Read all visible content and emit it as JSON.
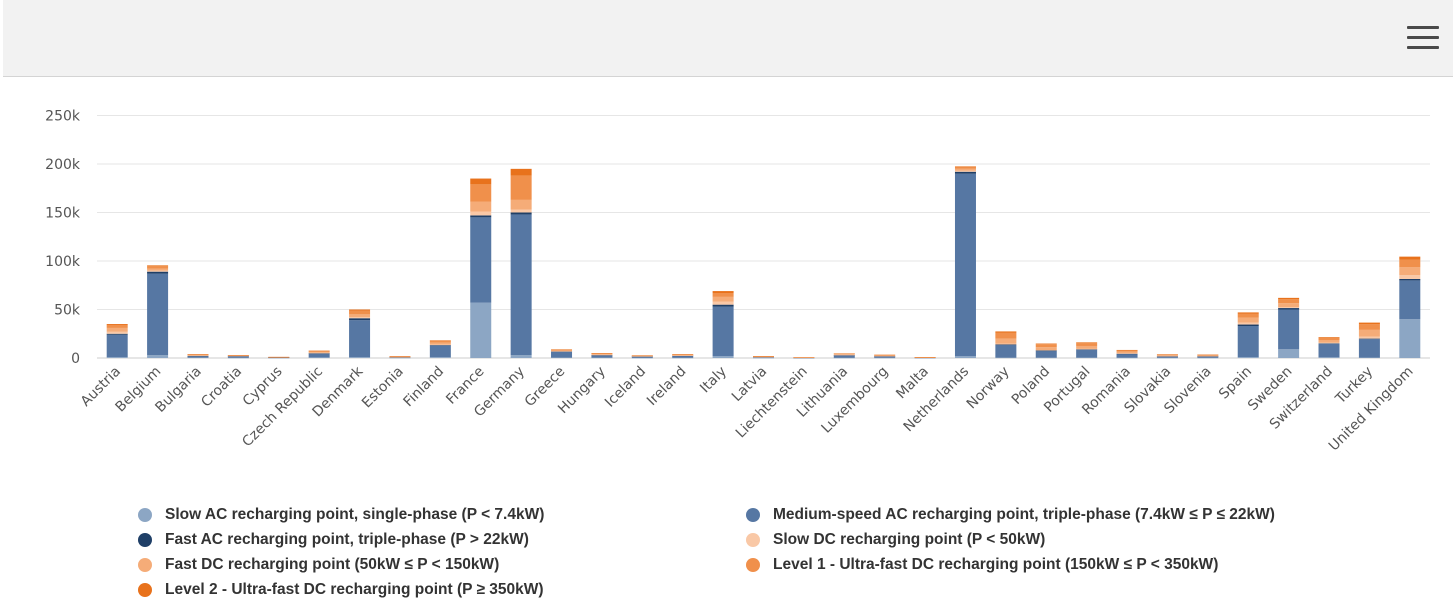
{
  "menu": {
    "icon": "hamburger-menu-icon"
  },
  "chart_data": {
    "type": "bar",
    "stacked": true,
    "categories": [
      "Austria",
      "Belgium",
      "Bulgaria",
      "Croatia",
      "Cyprus",
      "Czech Republic",
      "Denmark",
      "Estonia",
      "Finland",
      "France",
      "Germany",
      "Greece",
      "Hungary",
      "Iceland",
      "Ireland",
      "Italy",
      "Latvia",
      "Liechtenstein",
      "Lithuania",
      "Luxembourg",
      "Malta",
      "Netherlands",
      "Norway",
      "Poland",
      "Portugal",
      "Romania",
      "Slovakia",
      "Slovenia",
      "Spain",
      "Sweden",
      "Switzerland",
      "Turkey",
      "United Kingdom"
    ],
    "ylim": [
      0,
      250000
    ],
    "yticks": [
      0,
      50000,
      100000,
      150000,
      200000,
      250000
    ],
    "ytick_labels": [
      "0",
      "50k",
      "100k",
      "150k",
      "200k",
      "250k"
    ],
    "grid": true,
    "legend_position": "bottom",
    "series": [
      {
        "name": "Slow AC recharging point, single-phase (P < 7.4kW)",
        "color": "#8ca6c4",
        "values": [
          1000,
          3000,
          500,
          200,
          100,
          600,
          1000,
          200,
          800,
          57000,
          3000,
          500,
          400,
          100,
          200,
          2000,
          100,
          50,
          200,
          200,
          50,
          2000,
          400,
          400,
          500,
          300,
          200,
          200,
          1000,
          9000,
          700,
          500,
          40000
        ]
      },
      {
        "name": "Medium-speed AC recharging point, triple-phase (7.4kW ≤ P ≤ 22kW)",
        "color": "#5677a3",
        "values": [
          23000,
          84000,
          1500,
          1500,
          500,
          4000,
          38000,
          500,
          12000,
          88000,
          145000,
          6000,
          2500,
          1500,
          2000,
          51000,
          800,
          300,
          2500,
          1500,
          400,
          188000,
          13000,
          7000,
          8000,
          4000,
          1500,
          1500,
          32000,
          41000,
          14000,
          19000,
          40000
        ]
      },
      {
        "name": "Fast AC recharging point, triple-phase (P > 22kW)",
        "color": "#1f3f67",
        "values": [
          1000,
          2000,
          300,
          300,
          100,
          400,
          2000,
          100,
          500,
          2000,
          2000,
          300,
          200,
          100,
          300,
          2000,
          100,
          50,
          300,
          200,
          50,
          2000,
          500,
          300,
          400,
          200,
          100,
          100,
          1500,
          1500,
          500,
          500,
          1500
        ]
      },
      {
        "name": "Slow DC recharging point (P < 50kW)",
        "color": "#f9c8a6",
        "values": [
          2000,
          1000,
          200,
          200,
          100,
          300,
          1000,
          100,
          500,
          4000,
          3000,
          200,
          200,
          100,
          100,
          3000,
          100,
          50,
          200,
          200,
          50,
          1000,
          1000,
          500,
          500,
          300,
          200,
          200,
          2000,
          1000,
          500,
          2000,
          4000
        ]
      },
      {
        "name": "Fast DC recharging point (50kW ≤ P < 150kW)",
        "color": "#f5ac78",
        "values": [
          4000,
          2000,
          800,
          500,
          200,
          1000,
          3000,
          400,
          2000,
          10000,
          10000,
          800,
          800,
          400,
          500,
          5000,
          400,
          100,
          800,
          600,
          200,
          2000,
          5000,
          3000,
          3000,
          1800,
          900,
          700,
          5000,
          4000,
          2500,
          7000,
          8000
        ]
      },
      {
        "name": "Level 1 - Ultra-fast DC recharging point (150kW ≤ P < 350kW)",
        "color": "#f0904b",
        "values": [
          3000,
          2500,
          500,
          300,
          100,
          1000,
          4000,
          500,
          2000,
          18000,
          25000,
          800,
          600,
          400,
          600,
          4000,
          400,
          100,
          500,
          500,
          150,
          1500,
          6000,
          3000,
          3000,
          1200,
          700,
          600,
          4000,
          4000,
          2500,
          6000,
          8000
        ]
      },
      {
        "name": "Level 2 - Ultra-fast DC recharging point (P ≥ 350kW)",
        "color": "#e8721c",
        "values": [
          1000,
          1000,
          200,
          100,
          50,
          300,
          1000,
          100,
          500,
          6000,
          7000,
          300,
          300,
          100,
          200,
          2000,
          100,
          50,
          200,
          200,
          50,
          1000,
          1500,
          700,
          700,
          500,
          200,
          200,
          1500,
          1500,
          800,
          1500,
          3000
        ]
      }
    ]
  }
}
